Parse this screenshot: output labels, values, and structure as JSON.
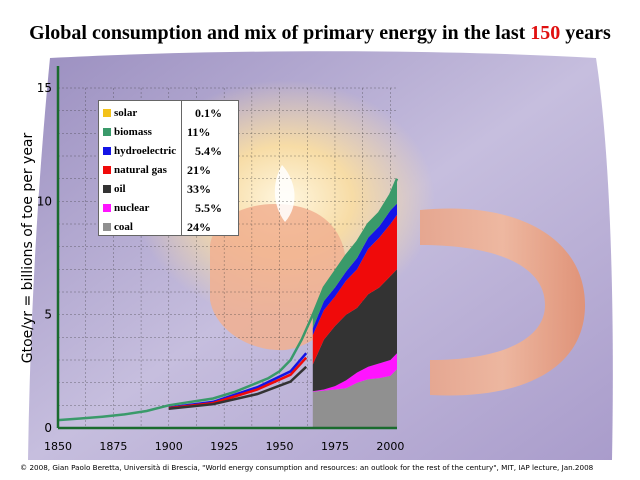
{
  "title": {
    "prefix": "Global consumption and mix of primary energy in the last ",
    "highlight": "150",
    "suffix": " years"
  },
  "credit": "© 2008, Gian Paolo Beretta, Università di Brescia, \"World energy consumption and resources: an outlook for the rest of the century\", MIT, IAP lecture, Jan.2008",
  "colors": {
    "solar": "#f3c21a",
    "biomass": "#3a9a6a",
    "hydroelectric": "#1414e6",
    "natural_gas": "#f00a0a",
    "oil": "#333333",
    "nuclear": "#ff14ff",
    "coal": "#909090",
    "axis_line": "#1a6b2e",
    "grid": "#333333",
    "title_accent": "#e01010"
  },
  "chart_data": {
    "type": "area",
    "title": "Global consumption and mix of primary energy in the last 150 years",
    "ylabel": "Gtoe/yr = billions of toe per year",
    "xlabel": "",
    "xlim": [
      1850,
      2003
    ],
    "ylim": [
      0,
      15
    ],
    "x_ticks": [
      1850,
      1875,
      1900,
      1925,
      1950,
      1975,
      2000
    ],
    "y_ticks": [
      0,
      5,
      10,
      15
    ],
    "grid": true,
    "legend_position": "top-left",
    "legend": [
      {
        "name": "solar",
        "share": "0.1%"
      },
      {
        "name": "biomass",
        "share": "11%"
      },
      {
        "name": "hydroelectric",
        "share": "5.4%"
      },
      {
        "name": "natural gas",
        "share": "21%"
      },
      {
        "name": "oil",
        "share": "33%"
      },
      {
        "name": "nuclear",
        "share": "5.5%"
      },
      {
        "name": "coal",
        "share": "24%"
      }
    ],
    "total_line": {
      "x": [
        1850,
        1860,
        1870,
        1880,
        1890,
        1900,
        1910,
        1920,
        1930,
        1940,
        1945,
        1950,
        1955,
        1960,
        1965,
        1970,
        1975,
        1980,
        1985,
        1990,
        1995,
        2000,
        2003
      ],
      "y": [
        0.35,
        0.42,
        0.5,
        0.6,
        0.75,
        1.0,
        1.15,
        1.3,
        1.6,
        2.0,
        2.2,
        2.5,
        3.0,
        3.9,
        5.0,
        6.2,
        6.9,
        7.6,
        8.2,
        9.0,
        9.5,
        10.3,
        11.0
      ]
    },
    "cumulative_x": [
      1965,
      1970,
      1975,
      1980,
      1985,
      1990,
      1995,
      2000,
      2003
    ],
    "cumulative_series": [
      {
        "name": "coal",
        "y": [
          1.6,
          1.65,
          1.7,
          1.75,
          2.0,
          2.15,
          2.2,
          2.3,
          2.6
        ]
      },
      {
        "name": "nuclear",
        "y": [
          1.62,
          1.7,
          1.85,
          2.1,
          2.45,
          2.7,
          2.85,
          3.0,
          3.3
        ]
      },
      {
        "name": "oil",
        "y": [
          2.8,
          3.9,
          4.5,
          5.0,
          5.3,
          5.9,
          6.2,
          6.7,
          7.0
        ]
      },
      {
        "name": "natural gas",
        "y": [
          4.1,
          5.2,
          5.8,
          6.5,
          7.0,
          7.9,
          8.4,
          9.0,
          9.4
        ]
      },
      {
        "name": "hydroelectric",
        "y": [
          4.4,
          5.6,
          6.2,
          6.9,
          7.5,
          8.4,
          8.9,
          9.6,
          9.9
        ]
      },
      {
        "name": "biomass",
        "y": [
          5.0,
          6.2,
          6.9,
          7.6,
          8.2,
          9.0,
          9.5,
          10.3,
          11.0
        ]
      },
      {
        "name": "solar",
        "y": [
          5.0,
          6.2,
          6.9,
          7.6,
          8.2,
          9.0,
          9.5,
          10.33,
          11.02
        ]
      }
    ],
    "early_lines": [
      {
        "name": "hydroelectric",
        "x": [
          1900,
          1920,
          1940,
          1955,
          1962
        ],
        "y": [
          0.9,
          1.15,
          1.8,
          2.5,
          3.3
        ]
      },
      {
        "name": "natural gas",
        "x": [
          1900,
          1920,
          1940,
          1955,
          1962
        ],
        "y": [
          0.88,
          1.1,
          1.7,
          2.35,
          3.1
        ]
      },
      {
        "name": "oil",
        "x": [
          1900,
          1920,
          1940,
          1955,
          1962
        ],
        "y": [
          0.85,
          1.05,
          1.5,
          2.05,
          2.7
        ]
      }
    ]
  }
}
